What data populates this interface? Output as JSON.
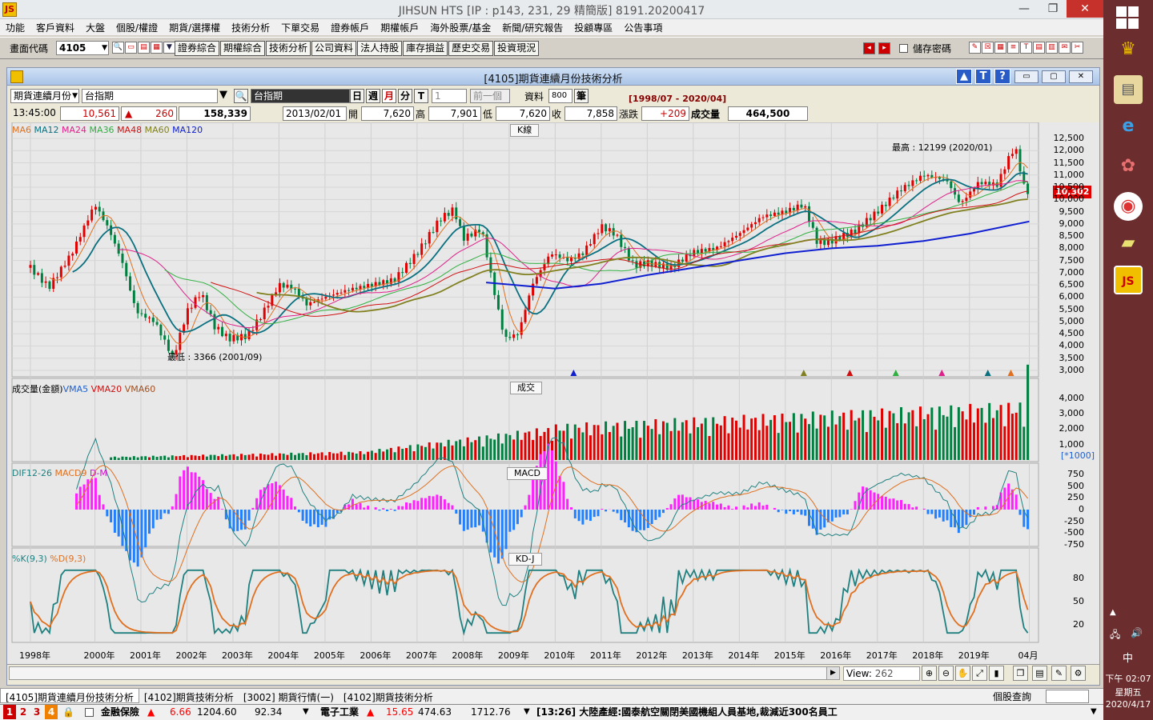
{
  "window": {
    "title": "JIHSUN HTS      [IP : p143, 231, 29 精簡版] 8191.20200417",
    "minimize": "—",
    "restore": "❐",
    "close": "✕"
  },
  "menu": [
    "功能",
    "客戶資料",
    "大盤",
    "個股/權證",
    "期貨/選擇權",
    "技術分析",
    "下單交易",
    "證券帳戶",
    "期權帳戶",
    "海外股票/基金",
    "新聞/研究報告",
    "投顧專區",
    "公告事項"
  ],
  "toolbar": {
    "code_label": "畫面代碼",
    "code_value": "4105",
    "buttons": [
      "證券綜合",
      "期權綜合",
      "技術分析",
      "公司資料",
      "法人持股",
      "庫存損益",
      "歷史交易",
      "投資現況"
    ],
    "save_password": "儲存密碼"
  },
  "chartwin": {
    "title": "[4105]期貨連續月份技術分析",
    "help_up": "▲",
    "help_t": "T",
    "help_q": "?",
    "contract_select": "期貨連續月份",
    "symbol": "台指期",
    "symbol_field": "台指期",
    "periods": [
      "日",
      "週",
      "月",
      "分",
      "T"
    ],
    "active_period": "月",
    "interval": "1",
    "prev_btn": "前一個",
    "data_label": "資料",
    "data_count": "800",
    "unit": "筆",
    "range": "[1998/07 - 2020/04]",
    "quote": {
      "time": "13:45:00",
      "price": "10,561",
      "change": "260",
      "volume": "158,339",
      "date": "2013/02/01",
      "open_label": "開",
      "open": "7,620",
      "high_label": "高",
      "high": "7,901",
      "low_label": "低",
      "low": "7,620",
      "close_label": "收",
      "close": "7,858",
      "chg_label": "漲跌",
      "chg": "+209",
      "vol_label": "成交量",
      "vol": "464,500"
    }
  },
  "chart_data": {
    "type": "candlestick",
    "title": "K線",
    "ma_legend": [
      {
        "name": "MA6",
        "color": "#e07020"
      },
      {
        "name": "MA12",
        "color": "#0a7080"
      },
      {
        "name": "MA24",
        "color": "#e0208a"
      },
      {
        "name": "MA36",
        "color": "#30b040"
      },
      {
        "name": "MA48",
        "color": "#d01010"
      },
      {
        "name": "MA60",
        "color": "#808020"
      },
      {
        "name": "MA120",
        "color": "#1020d0"
      }
    ],
    "price_axis": [
      "12,500",
      "12,000",
      "11,500",
      "11,000",
      "10,500",
      "10,000",
      "9,500",
      "9,000",
      "8,500",
      "8,000",
      "7,500",
      "7,000",
      "6,500",
      "6,000",
      "5,500",
      "5,000",
      "4,500",
      "4,000",
      "3,500",
      "3,000"
    ],
    "ylim": [
      3000,
      12500
    ],
    "current_price_tag": "10,302",
    "annotations": {
      "high": "最高 : 12199 (2020/01)",
      "low": "最低 : 3366 (2001/09)"
    },
    "x_labels": [
      "1998年",
      "2000年",
      "2001年",
      "2002年",
      "2003年",
      "2004年",
      "2005年",
      "2006年",
      "2007年",
      "2008年",
      "2009年",
      "2010年",
      "2011年",
      "2012年",
      "2013年",
      "2014年",
      "2015年",
      "2016年",
      "2017年",
      "2018年",
      "2019年",
      "04月"
    ],
    "close_series": [
      {
        "t": 1998.6,
        "v": 7200
      },
      {
        "t": 1999.0,
        "v": 6400
      },
      {
        "t": 1999.5,
        "v": 7800
      },
      {
        "t": 2000.0,
        "v": 9800
      },
      {
        "t": 2000.3,
        "v": 8800
      },
      {
        "t": 2000.6,
        "v": 7400
      },
      {
        "t": 2000.9,
        "v": 5400
      },
      {
        "t": 2001.3,
        "v": 5000
      },
      {
        "t": 2001.7,
        "v": 3500
      },
      {
        "t": 2002.0,
        "v": 5400
      },
      {
        "t": 2002.3,
        "v": 6200
      },
      {
        "t": 2002.6,
        "v": 4800
      },
      {
        "t": 2002.9,
        "v": 4300
      },
      {
        "t": 2003.3,
        "v": 4400
      },
      {
        "t": 2003.6,
        "v": 5200
      },
      {
        "t": 2004.0,
        "v": 6500
      },
      {
        "t": 2004.3,
        "v": 6400
      },
      {
        "t": 2004.6,
        "v": 5700
      },
      {
        "t": 2005.0,
        "v": 6000
      },
      {
        "t": 2005.5,
        "v": 6300
      },
      {
        "t": 2006.0,
        "v": 6500
      },
      {
        "t": 2006.5,
        "v": 6700
      },
      {
        "t": 2007.0,
        "v": 7800
      },
      {
        "t": 2007.5,
        "v": 9200
      },
      {
        "t": 2007.8,
        "v": 9600
      },
      {
        "t": 2008.0,
        "v": 8400
      },
      {
        "t": 2008.4,
        "v": 8800
      },
      {
        "t": 2008.7,
        "v": 6000
      },
      {
        "t": 2008.9,
        "v": 4300
      },
      {
        "t": 2009.2,
        "v": 4500
      },
      {
        "t": 2009.5,
        "v": 6500
      },
      {
        "t": 2009.9,
        "v": 7800
      },
      {
        "t": 2010.3,
        "v": 7500
      },
      {
        "t": 2010.6,
        "v": 7800
      },
      {
        "t": 2011.0,
        "v": 8900
      },
      {
        "t": 2011.3,
        "v": 8600
      },
      {
        "t": 2011.7,
        "v": 7300
      },
      {
        "t": 2012.0,
        "v": 7400
      },
      {
        "t": 2012.5,
        "v": 7200
      },
      {
        "t": 2013.0,
        "v": 7850
      },
      {
        "t": 2013.5,
        "v": 8000
      },
      {
        "t": 2014.0,
        "v": 8600
      },
      {
        "t": 2014.5,
        "v": 9300
      },
      {
        "t": 2015.0,
        "v": 9500
      },
      {
        "t": 2015.4,
        "v": 9800
      },
      {
        "t": 2015.7,
        "v": 8200
      },
      {
        "t": 2016.0,
        "v": 8300
      },
      {
        "t": 2016.5,
        "v": 8700
      },
      {
        "t": 2017.0,
        "v": 9500
      },
      {
        "t": 2017.5,
        "v": 10400
      },
      {
        "t": 2018.0,
        "v": 11000
      },
      {
        "t": 2018.5,
        "v": 10800
      },
      {
        "t": 2018.8,
        "v": 9800
      },
      {
        "t": 2019.2,
        "v": 10700
      },
      {
        "t": 2019.6,
        "v": 10600
      },
      {
        "t": 2019.9,
        "v": 11900
      },
      {
        "t": 2020.0,
        "v": 12100
      },
      {
        "t": 2020.2,
        "v": 10400
      },
      {
        "t": 2020.3,
        "v": 10302
      }
    ],
    "ma120_series": [
      {
        "t": 2008.5,
        "v": 6600
      },
      {
        "t": 2010.0,
        "v": 6350
      },
      {
        "t": 2011.0,
        "v": 6550
      },
      {
        "t": 2012.0,
        "v": 6900
      },
      {
        "t": 2013.0,
        "v": 7200
      },
      {
        "t": 2014.0,
        "v": 7500
      },
      {
        "t": 2015.0,
        "v": 7800
      },
      {
        "t": 2016.0,
        "v": 8000
      },
      {
        "t": 2017.0,
        "v": 8100
      },
      {
        "t": 2018.0,
        "v": 8300
      },
      {
        "t": 2019.0,
        "v": 8600
      },
      {
        "t": 2020.3,
        "v": 9100
      }
    ],
    "volume_label": "成交量(金額)",
    "volume_legend": [
      {
        "name": "VMA5",
        "color": "#2060d0"
      },
      {
        "name": "VMA20",
        "color": "#d01010"
      },
      {
        "name": "VMA60",
        "color": "#a05020"
      }
    ],
    "volume_title": "成交",
    "volume_axis": [
      "4,000",
      "3,000",
      "2,000",
      "1,000"
    ],
    "volume_unit": "[*1000]",
    "macd_legend": [
      {
        "name": "DIF12-26",
        "color": "#208080"
      },
      {
        "name": "MACD9",
        "color": "#e07020"
      },
      {
        "name": "D-M",
        "color": "#d010d0"
      }
    ],
    "macd_title": "MACD",
    "macd_axis": [
      "750",
      "500",
      "250",
      "0",
      "-250",
      "-500",
      "-750"
    ],
    "kd_legend": [
      {
        "name": "%K(9,3)",
        "color": "#208080"
      },
      {
        "name": "%D(9,3)",
        "color": "#e07020"
      }
    ],
    "kd_title": "KD-J",
    "kd_axis": [
      "80",
      "50",
      "20"
    ]
  },
  "scroll": {
    "view_label": "View:",
    "view_value": "262"
  },
  "tabs": [
    "[4105]期貨連續月份技術分析",
    "[4102]期貨技術分析",
    "[3002] 期貨行情(一)",
    "[4102]期貨技術分析"
  ],
  "tab_right": "個股查詢",
  "status": {
    "nums": [
      "1",
      "2",
      "3",
      "4"
    ],
    "s1_name": "金融保險",
    "s1_chg": "6.66",
    "s1_idx": "1204.60",
    "s1_val": "92.34",
    "s2_name": "電子工業",
    "s2_chg": "15.65",
    "s2_idx": "474.63",
    "s2_val": "1712.76",
    "news": "[13:26] 大陸產經:國泰航空關閉美國機組人員基地,裁減近300名員工"
  },
  "taskbar": {
    "time": "下午 02:07",
    "weekday": "星期五",
    "date": "2020/4/17",
    "ime": "中"
  }
}
